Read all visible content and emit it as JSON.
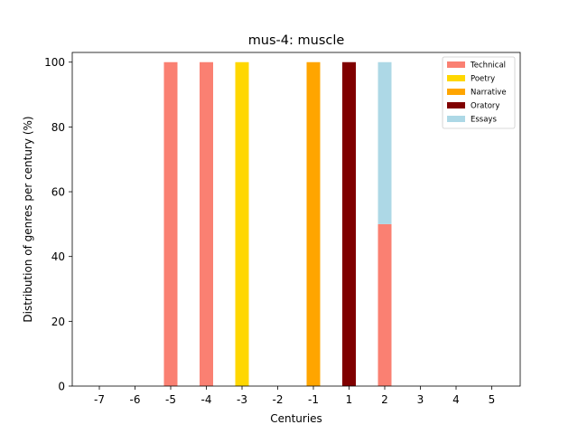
{
  "chart_data": {
    "type": "bar",
    "stacked": true,
    "title": "mus-4: muscle",
    "xlabel": "Centuries",
    "ylabel": "Distribution of genres per century (%)",
    "categories": [
      "-7",
      "-6",
      "-5",
      "-4",
      "-3",
      "-2",
      "-1",
      "1",
      "2",
      "3",
      "4",
      "5"
    ],
    "ylim": [
      0,
      103
    ],
    "yticks": [
      0,
      20,
      40,
      60,
      80,
      100
    ],
    "grid": false,
    "legend_position": "top-right",
    "series": [
      {
        "name": "Technical",
        "color": "#fa8072",
        "values": [
          0,
          0,
          100,
          100,
          0,
          0,
          0,
          0,
          50,
          0,
          0,
          0
        ]
      },
      {
        "name": "Poetry",
        "color": "#ffd700",
        "values": [
          0,
          0,
          0,
          0,
          100,
          0,
          0,
          0,
          0,
          0,
          0,
          0
        ]
      },
      {
        "name": "Narrative",
        "color": "#ffa500",
        "values": [
          0,
          0,
          0,
          0,
          0,
          0,
          100,
          0,
          0,
          0,
          0,
          0
        ]
      },
      {
        "name": "Oratory",
        "color": "#800000",
        "values": [
          0,
          0,
          0,
          0,
          0,
          0,
          0,
          100,
          0,
          0,
          0,
          0
        ]
      },
      {
        "name": "Essays",
        "color": "#add8e6",
        "values": [
          0,
          0,
          0,
          0,
          0,
          0,
          0,
          0,
          50,
          0,
          0,
          0
        ]
      }
    ]
  }
}
